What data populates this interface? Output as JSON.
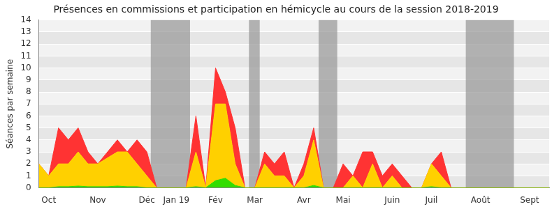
{
  "chart_data": {
    "type": "area",
    "title": "Présences en commissions et participation en hémicycle au cours de la session 2018-2019",
    "y_label": "Séances par semaine",
    "categories": [
      null,
      "Oct",
      null,
      null,
      null,
      null,
      "Nov",
      null,
      null,
      null,
      null,
      "Déc",
      null,
      null,
      "Jan 19",
      null,
      null,
      null,
      "Fév",
      null,
      null,
      null,
      "Mar",
      null,
      null,
      null,
      null,
      "Avr",
      null,
      null,
      null,
      "Mai",
      null,
      null,
      null,
      null,
      "Juin",
      null,
      null,
      null,
      "Juil",
      null,
      null,
      null,
      null,
      "Août",
      null,
      null,
      null,
      null,
      "Sept",
      null,
      null
    ],
    "series": [
      {
        "color": "#33dd00",
        "values": [
          0,
          0,
          0.1,
          0.1,
          0.15,
          0.1,
          0.1,
          0.1,
          0.15,
          0.1,
          0.1,
          0,
          0,
          0,
          0,
          0,
          0.1,
          0,
          0.6,
          0.8,
          0.2,
          0,
          0,
          0,
          0,
          0,
          0,
          0,
          0.2,
          0,
          0,
          0,
          0,
          0,
          0,
          0,
          0,
          0,
          0,
          0,
          0.1,
          0,
          0,
          0,
          0,
          0,
          0,
          0,
          0,
          0,
          0,
          0,
          0
        ]
      },
      {
        "color": "#ffd000",
        "values": [
          2,
          1,
          1.9,
          1.9,
          2.85,
          1.9,
          1.9,
          2.4,
          2.85,
          2.9,
          1.9,
          1,
          0,
          0,
          0,
          0,
          2.9,
          0,
          6.4,
          6.2,
          1.8,
          0,
          0,
          2,
          1,
          1,
          0,
          1,
          3.8,
          0,
          0,
          0,
          1,
          0,
          2,
          0,
          1,
          0,
          0,
          0,
          1.9,
          1,
          0,
          0,
          0,
          0,
          0,
          0,
          0,
          0,
          0,
          0,
          0
        ]
      },
      {
        "color": "#ff3333",
        "values": [
          0,
          0,
          3,
          2,
          2,
          1,
          0,
          0.5,
          1,
          0,
          2,
          2,
          0,
          0,
          0,
          0,
          3,
          0,
          3,
          1,
          3,
          0,
          0,
          1,
          1,
          2,
          0,
          1,
          1,
          0,
          0,
          2,
          0,
          3,
          1,
          1,
          1,
          1,
          0,
          0,
          0,
          2,
          0,
          0,
          0,
          0,
          0,
          0,
          0,
          0,
          0,
          0,
          0
        ]
      }
    ],
    "shaded_ranges": [
      [
        11.4,
        15.4
      ],
      [
        21.4,
        22.5
      ],
      [
        28.5,
        30.4
      ],
      [
        43.5,
        48.4
      ]
    ],
    "stacked": true,
    "ylim": [
      0,
      14
    ],
    "yticks": [
      0,
      1,
      2,
      3,
      4,
      5,
      6,
      7,
      8,
      9,
      10,
      11,
      12,
      13,
      14
    ],
    "grid": true
  }
}
